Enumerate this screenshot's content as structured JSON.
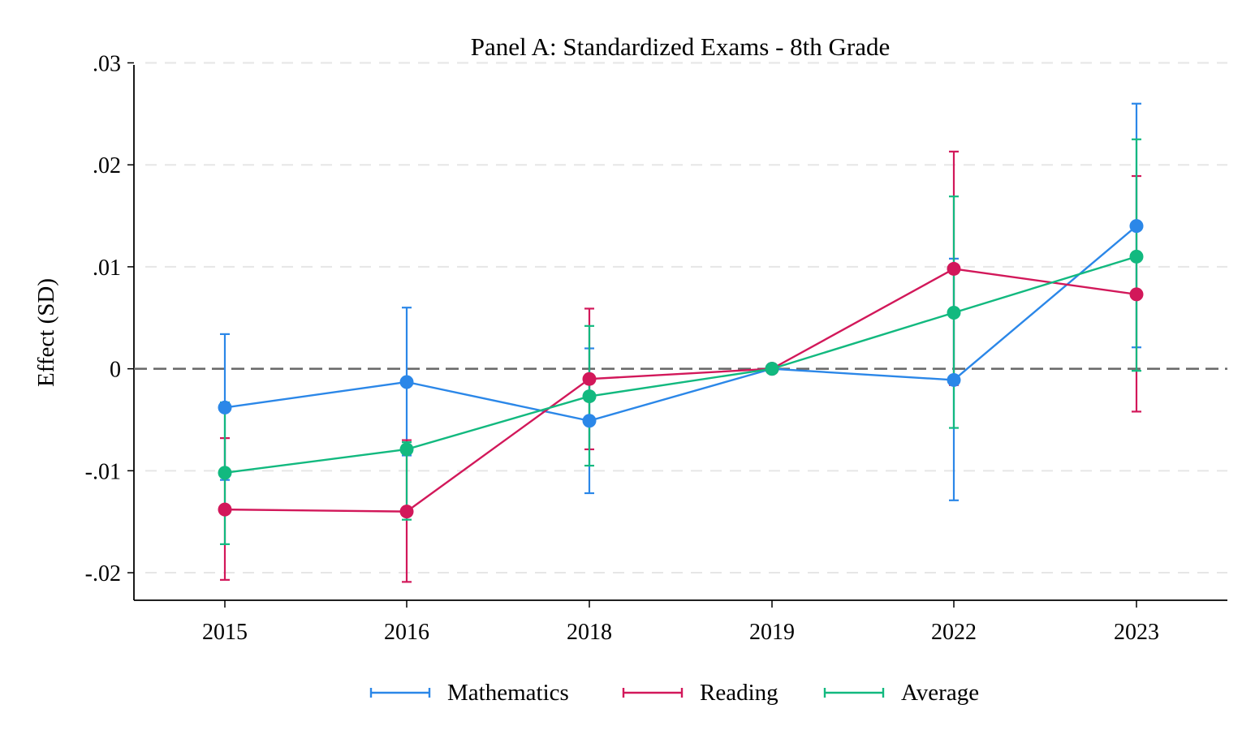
{
  "chart_data": {
    "type": "line",
    "title": "Panel A: Standardized Exams - 8th Grade",
    "xlabel": "",
    "ylabel": "Effect (SD)",
    "categories": [
      "2015",
      "2016",
      "2018",
      "2019",
      "2022",
      "2023"
    ],
    "ylim": [
      -0.0227,
      0.0298
    ],
    "yticks": [
      {
        "value": 0.03,
        "label": ".03"
      },
      {
        "value": 0.02,
        "label": ".02"
      },
      {
        "value": 0.01,
        "label": ".01"
      },
      {
        "value": 0.0,
        "label": "0"
      },
      {
        "value": -0.01,
        "label": "-.01"
      },
      {
        "value": -0.02,
        "label": "-.02"
      }
    ],
    "reference_line": 0,
    "grid": "horizontal dashed",
    "legend_position": "bottom",
    "series": [
      {
        "name": "Mathematics",
        "color": "#2b87e8",
        "values": [
          -0.0038,
          -0.0013,
          -0.0051,
          0.0,
          -0.0011,
          0.014
        ],
        "ci_low": [
          -0.0109,
          -0.0085,
          -0.0122,
          0.0,
          -0.0129,
          0.0021
        ],
        "ci_high": [
          0.0034,
          0.006,
          0.002,
          0.0,
          0.0108,
          0.026
        ]
      },
      {
        "name": "Reading",
        "color": "#d2185a",
        "values": [
          -0.0138,
          -0.014,
          -0.001,
          0.0,
          0.0098,
          0.0073
        ],
        "ci_low": [
          -0.0207,
          -0.0209,
          -0.0079,
          0.0,
          -0.0016,
          -0.0042
        ],
        "ci_high": [
          -0.0068,
          -0.007,
          0.0059,
          0.0,
          0.0213,
          0.0189
        ]
      },
      {
        "name": "Average",
        "color": "#12b97f",
        "values": [
          -0.0102,
          -0.0079,
          -0.0027,
          0.0,
          0.0055,
          0.011
        ],
        "ci_low": [
          -0.0172,
          -0.0148,
          -0.0095,
          0.0,
          -0.0058,
          -0.0002
        ],
        "ci_high": [
          -0.0033,
          -0.0072,
          0.0042,
          0.0,
          0.0169,
          0.0225
        ]
      }
    ]
  }
}
